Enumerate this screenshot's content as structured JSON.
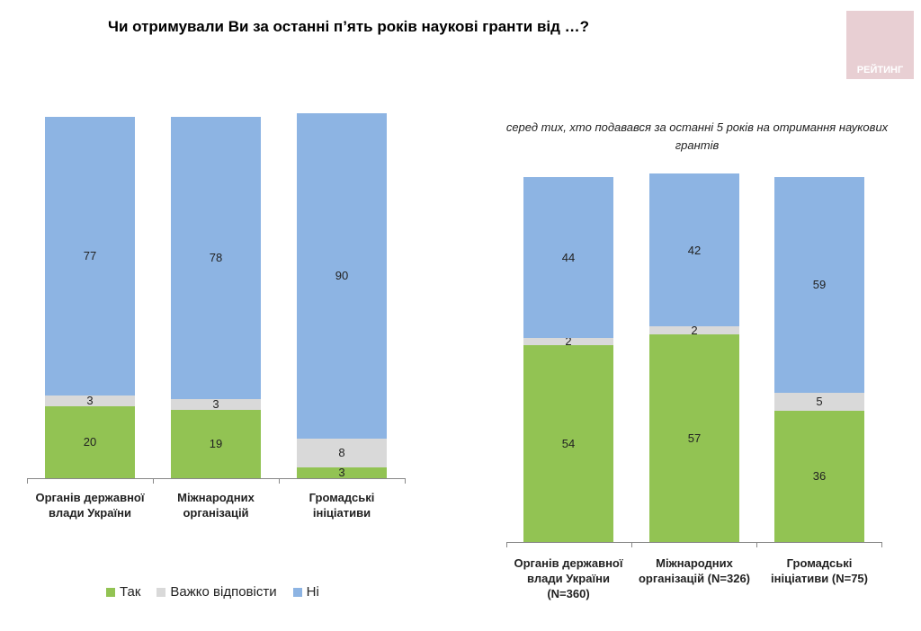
{
  "title": "Чи отримували Ви за останні п’ять років наукові гранти від …?",
  "logo_text": "РЕЙТИНГ",
  "colors": {
    "yes": "#92c353",
    "hard": "#d9d9d9",
    "no": "#8db4e3"
  },
  "legend": [
    {
      "label": "Так",
      "key": "yes"
    },
    {
      "label": "Важко відповісти",
      "key": "hard"
    },
    {
      "label": "Ні",
      "key": "no"
    }
  ],
  "chart_data": [
    {
      "type": "bar",
      "stacked": true,
      "title": "Чи отримували Ви за останні п’ять років наукові гранти від …?",
      "categories": [
        "Органів державної влади України",
        "Міжнародних організацій",
        "Громадські ініціативи"
      ],
      "series": [
        {
          "name": "Так",
          "values": [
            20,
            19,
            3
          ]
        },
        {
          "name": "Важко відповісти",
          "values": [
            3,
            3,
            8
          ]
        },
        {
          "name": "Ні",
          "values": [
            77,
            78,
            90
          ]
        }
      ],
      "ylim": [
        0,
        100
      ],
      "legend": "bottom"
    },
    {
      "type": "bar",
      "stacked": true,
      "subtitle": "серед тих, хто подавався за останні 5 років на отримання наукових грантів",
      "categories": [
        "Органів державної влади України (N=360)",
        "Міжнародних організацій (N=326)",
        "Громадські ініціативи (N=75)"
      ],
      "series": [
        {
          "name": "Так",
          "values": [
            54,
            57,
            36
          ]
        },
        {
          "name": "Важко відповісти",
          "values": [
            2,
            2,
            5
          ]
        },
        {
          "name": "Ні",
          "values": [
            44,
            42,
            59
          ]
        }
      ],
      "ylim": [
        0,
        100
      ]
    }
  ]
}
